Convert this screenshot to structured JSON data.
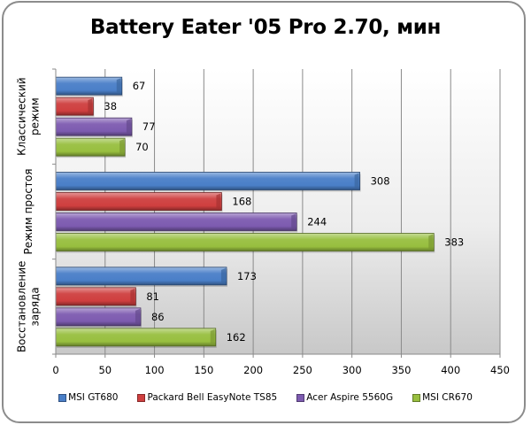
{
  "chart_data": {
    "type": "bar",
    "orientation": "horizontal",
    "title": "Battery Eater '05 Pro 2.70, мин",
    "xlabel": "",
    "ylabel": "",
    "xlim": [
      0,
      450
    ],
    "x_ticks": [
      "0",
      "50",
      "100",
      "150",
      "200",
      "250",
      "300",
      "350",
      "400",
      "450"
    ],
    "grid": true,
    "legend_position": "bottom",
    "categories": [
      {
        "lines": [
          "Классический",
          "режим"
        ]
      },
      {
        "lines": [
          "Режим простоя"
        ]
      },
      {
        "lines": [
          "Восстановление",
          "заряда"
        ]
      }
    ],
    "series": [
      {
        "name": "MSI GT680",
        "color": "#4a7fc8",
        "values": [
          67,
          308,
          173
        ]
      },
      {
        "name": "Packard Bell EasyNote TS85",
        "color": "#cf3f3f",
        "values": [
          38,
          168,
          81
        ]
      },
      {
        "name": "Acer Aspire 5560G",
        "color": "#7d5bb0",
        "values": [
          77,
          244,
          86
        ]
      },
      {
        "name": "MSI CR670",
        "color": "#98bf3f",
        "values": [
          70,
          383,
          162
        ]
      }
    ]
  }
}
